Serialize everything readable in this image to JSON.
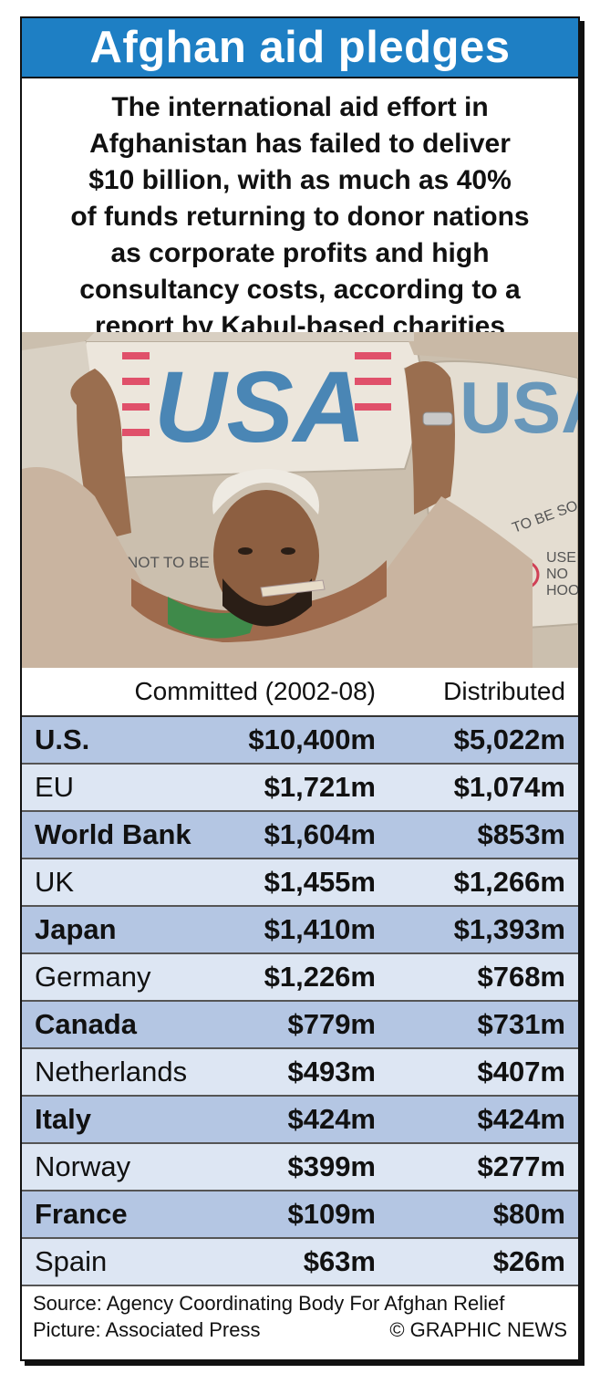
{
  "header": {
    "title": "Afghan aid pledges",
    "subtitle_lines": [
      "The international aid effort in",
      "Afghanistan has failed to deliver",
      "$10 billion, with as much as 40%",
      "of funds returning to donor nations",
      "as corporate profits and high",
      "consultancy costs, according to a",
      "report by Kabul-based charities"
    ]
  },
  "photo": {
    "sack_text_main": "USA",
    "sack_text_side": "USA",
    "sack_text_not_to_be_sold": "NOT TO BE SO",
    "sack_text_to_be_sold": "TO BE SO",
    "sack_text_use": "USE",
    "sack_text_no": "NO",
    "sack_text_hook": "HOO"
  },
  "table": {
    "header_committed": "Committed (2002-08)",
    "header_distributed": "Distributed",
    "rows": [
      {
        "country": "U.S.",
        "committed": "$10,400m",
        "distributed": "$5,022m"
      },
      {
        "country": "EU",
        "committed": "$1,721m",
        "distributed": "$1,074m"
      },
      {
        "country": "World Bank",
        "committed": "$1,604m",
        "distributed": "$853m"
      },
      {
        "country": "UK",
        "committed": "$1,455m",
        "distributed": "$1,266m"
      },
      {
        "country": "Japan",
        "committed": "$1,410m",
        "distributed": "$1,393m"
      },
      {
        "country": "Germany",
        "committed": "$1,226m",
        "distributed": "$768m"
      },
      {
        "country": "Canada",
        "committed": "$779m",
        "distributed": "$731m"
      },
      {
        "country": "Netherlands",
        "committed": "$493m",
        "distributed": "$407m"
      },
      {
        "country": "Italy",
        "committed": "$424m",
        "distributed": "$424m"
      },
      {
        "country": "Norway",
        "committed": "$399m",
        "distributed": "$277m"
      },
      {
        "country": "France",
        "committed": "$109m",
        "distributed": "$80m"
      },
      {
        "country": "Spain",
        "committed": "$63m",
        "distributed": "$26m"
      }
    ]
  },
  "footer": {
    "source": "Source: Agency Coordinating Body For Afghan Relief",
    "picture": "Picture: Associated Press",
    "copyright": "© GRAPHIC NEWS"
  },
  "colors": {
    "title_bg": "#1e7fc4",
    "row_odd": "#b4c6e3",
    "row_even": "#dde6f3"
  }
}
